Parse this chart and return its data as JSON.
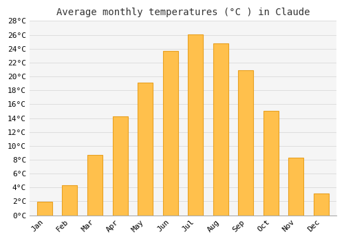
{
  "title": "Average monthly temperatures (°C ) in Claude",
  "categories": [
    "Jan",
    "Feb",
    "Mar",
    "Apr",
    "May",
    "Jun",
    "Jul",
    "Aug",
    "Sep",
    "Oct",
    "Nov",
    "Dec"
  ],
  "values": [
    1.9,
    4.3,
    8.7,
    14.3,
    19.1,
    23.7,
    26.1,
    24.8,
    20.9,
    15.0,
    8.3,
    3.1
  ],
  "bar_color": "#FFC04C",
  "bar_edge_color": "#E8A020",
  "background_color": "#ffffff",
  "plot_bg_color": "#f5f5f5",
  "grid_color": "#dddddd",
  "ylim": [
    0,
    28
  ],
  "title_fontsize": 10,
  "tick_fontsize": 8,
  "font_family": "monospace",
  "bar_width": 0.6
}
